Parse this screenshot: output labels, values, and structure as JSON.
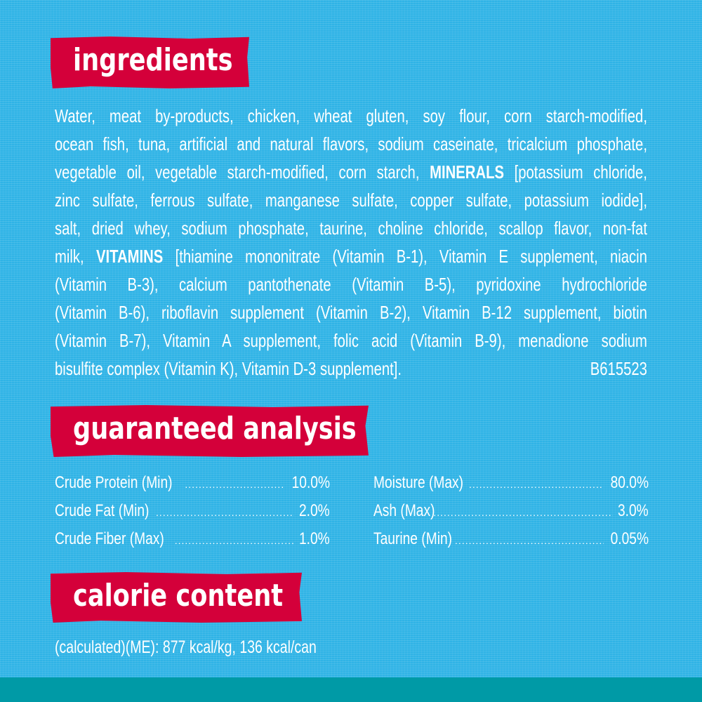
{
  "colors": {
    "background": "#2fb3e6",
    "banner": "#d4003a",
    "strip": "#009aa6",
    "text": "#ffffff"
  },
  "ingredients": {
    "heading": "ingredients",
    "lines": [
      [
        {
          "t": "Water, meat by-products, chicken, wheat gluten, soy flour, corn starch-modified,",
          "b": false
        }
      ],
      [
        {
          "t": "ocean fish, tuna, artificial and natural flavors, sodium caseinate, tricalcium phosphate,",
          "b": false
        }
      ],
      [
        {
          "t": "vegetable oil, vegetable starch-modified, corn starch, ",
          "b": false
        },
        {
          "t": "MINERALS",
          "b": true
        },
        {
          "t": " [potassium chloride,",
          "b": false
        }
      ],
      [
        {
          "t": "zinc sulfate, ferrous sulfate, manganese sulfate, copper sulfate, potassium iodide],",
          "b": false
        }
      ],
      [
        {
          "t": "salt, dried whey, sodium phosphate, taurine, choline chloride, scallop flavor, non-fat",
          "b": false
        }
      ],
      [
        {
          "t": "milk, ",
          "b": false
        },
        {
          "t": "VITAMINS",
          "b": true
        },
        {
          "t": " [thiamine mononitrate (Vitamin B-1), Vitamin E supplement, niacin",
          "b": false
        }
      ],
      [
        {
          "t": "(Vitamin B-3), calcium pantothenate (Vitamin B-5), pyridoxine hydrochloride",
          "b": false
        }
      ],
      [
        {
          "t": "(Vitamin B-6), riboflavin supplement (Vitamin B-2), Vitamin B-12 supplement, biotin",
          "b": false
        }
      ],
      [
        {
          "t": "(Vitamin B-7), Vitamin A supplement, folic acid (Vitamin B-9), menadione sodium",
          "b": false
        }
      ],
      [
        {
          "t": "bisulfite complex (Vitamin K), Vitamin D-3 supplement].",
          "b": false
        }
      ]
    ],
    "code": "B615523"
  },
  "analysis": {
    "heading": "guaranteed analysis",
    "left": [
      {
        "label": "Crude Protein (Min)",
        "value": "10.0%"
      },
      {
        "label": "Crude Fat (Min)",
        "value": "2.0%"
      },
      {
        "label": "Crude Fiber (Max)",
        "value": "1.0%"
      }
    ],
    "right": [
      {
        "label": "Moisture (Max)",
        "value": "80.0%"
      },
      {
        "label": "Ash (Max)",
        "value": "3.0%"
      },
      {
        "label": "Taurine (Min)",
        "value": "0.05%"
      }
    ]
  },
  "calorie": {
    "heading": "calorie content",
    "text": "(calculated)(ME): 877 kcal/kg, 136 kcal/can"
  }
}
